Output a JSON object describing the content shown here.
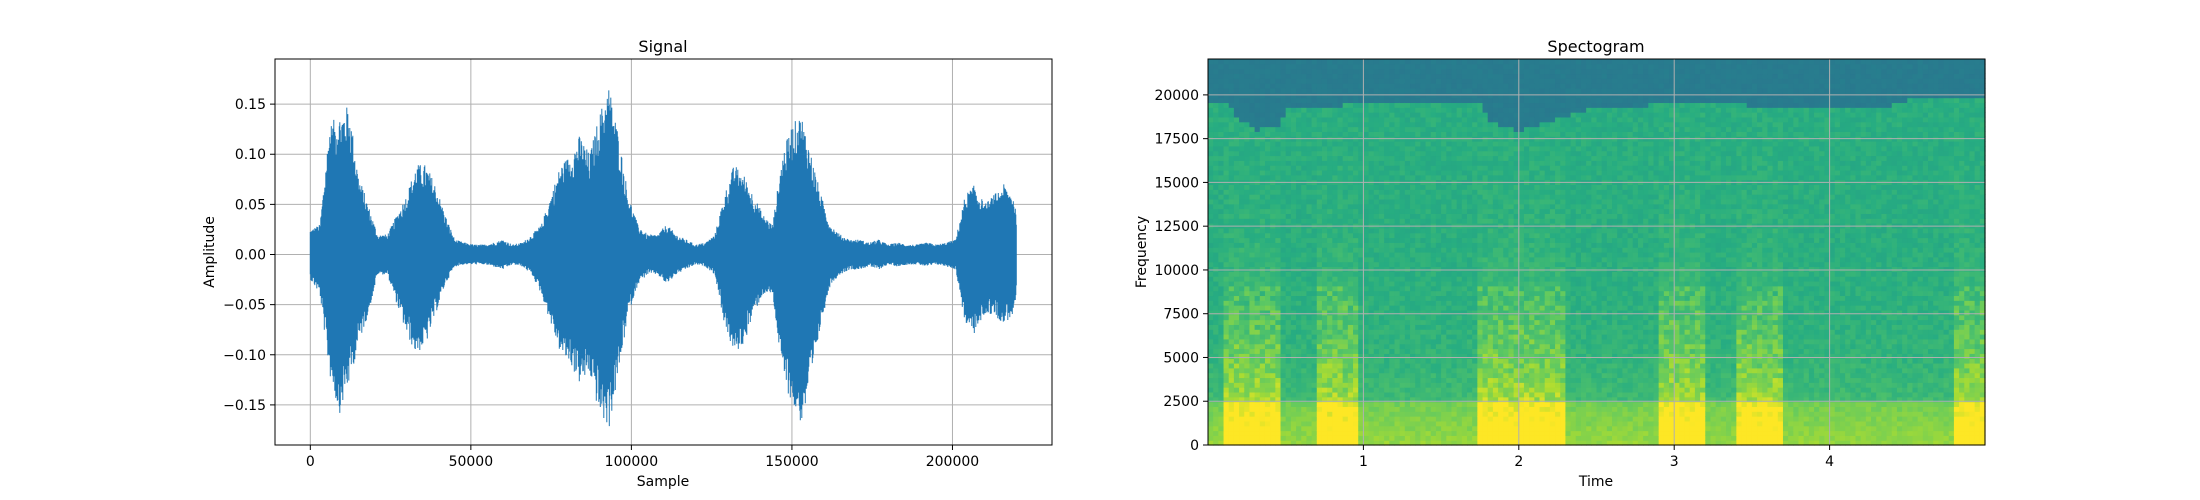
{
  "chart_data": [
    {
      "type": "line",
      "title": "Signal",
      "xlabel": "Sample",
      "ylabel": "Amplitude",
      "xlim": [
        -11000,
        231000
      ],
      "ylim": [
        -0.19,
        0.195
      ],
      "xticks": [
        0,
        50000,
        100000,
        150000,
        200000
      ],
      "xtick_labels": [
        "0",
        "50000",
        "100000",
        "150000",
        "200000"
      ],
      "yticks": [
        -0.15,
        -0.1,
        -0.05,
        0.0,
        0.05,
        0.1,
        0.15
      ],
      "ytick_labels": [
        "−0.15",
        "−0.10",
        "−0.05",
        "0.00",
        "0.05",
        "0.10",
        "0.15"
      ],
      "grid": true,
      "color": "#1f77b4",
      "series": [
        {
          "x": [
            0,
            3000,
            6000,
            9000,
            12000,
            15000,
            18000,
            21000,
            24000,
            27000,
            30000,
            33000,
            36000,
            39000,
            42000,
            45000,
            48000,
            51000,
            54000,
            57000,
            60000,
            63000,
            66000,
            69000,
            72000,
            75000,
            78000,
            81000,
            84000,
            87000,
            90000,
            93000,
            96000,
            99000,
            102000,
            105000,
            108000,
            111000,
            114000,
            117000,
            120000,
            123000,
            126000,
            129000,
            132000,
            135000,
            138000,
            141000,
            144000,
            147000,
            150000,
            153000,
            156000,
            159000,
            162000,
            165000,
            168000,
            171000,
            174000,
            177000,
            180000,
            183000,
            186000,
            189000,
            192000,
            195000,
            198000,
            201000,
            204000,
            207000,
            210000,
            213000,
            216000,
            219000,
            220000
          ],
          "ymax": [
            0.025,
            0.03,
            0.13,
            0.14,
            0.15,
            0.08,
            0.05,
            0.02,
            0.02,
            0.04,
            0.06,
            0.09,
            0.09,
            0.07,
            0.04,
            0.015,
            0.012,
            0.01,
            0.01,
            0.012,
            0.015,
            0.01,
            0.012,
            0.02,
            0.03,
            0.06,
            0.09,
            0.1,
            0.12,
            0.1,
            0.14,
            0.17,
            0.12,
            0.06,
            0.03,
            0.02,
            0.02,
            0.03,
            0.02,
            0.015,
            0.01,
            0.012,
            0.02,
            0.06,
            0.09,
            0.08,
            0.06,
            0.04,
            0.03,
            0.1,
            0.13,
            0.14,
            0.1,
            0.06,
            0.03,
            0.02,
            0.015,
            0.015,
            0.012,
            0.015,
            0.01,
            0.012,
            0.01,
            0.01,
            0.012,
            0.01,
            0.012,
            0.015,
            0.06,
            0.07,
            0.05,
            0.06,
            0.07,
            0.06,
            0.04
          ],
          "ymin": [
            -0.025,
            -0.04,
            -0.12,
            -0.16,
            -0.13,
            -0.09,
            -0.06,
            -0.02,
            -0.02,
            -0.05,
            -0.08,
            -0.1,
            -0.09,
            -0.06,
            -0.03,
            -0.012,
            -0.01,
            -0.01,
            -0.01,
            -0.012,
            -0.015,
            -0.01,
            -0.012,
            -0.02,
            -0.04,
            -0.07,
            -0.1,
            -0.11,
            -0.13,
            -0.12,
            -0.16,
            -0.175,
            -0.12,
            -0.06,
            -0.03,
            -0.02,
            -0.02,
            -0.03,
            -0.02,
            -0.015,
            -0.01,
            -0.012,
            -0.02,
            -0.07,
            -0.1,
            -0.09,
            -0.06,
            -0.04,
            -0.04,
            -0.12,
            -0.15,
            -0.17,
            -0.13,
            -0.07,
            -0.03,
            -0.02,
            -0.015,
            -0.015,
            -0.012,
            -0.015,
            -0.01,
            -0.012,
            -0.01,
            -0.01,
            -0.012,
            -0.01,
            -0.012,
            -0.015,
            -0.07,
            -0.08,
            -0.06,
            -0.06,
            -0.07,
            -0.06,
            -0.04
          ]
        }
      ]
    },
    {
      "type": "heatmap",
      "title": "Spectogram",
      "xlabel": "Time",
      "ylabel": "Frequency",
      "xlim": [
        0,
        5
      ],
      "ylim": [
        0,
        22050
      ],
      "xticks": [
        1,
        2,
        3,
        4
      ],
      "xtick_labels": [
        "1",
        "2",
        "3",
        "4"
      ],
      "yticks": [
        0,
        2500,
        5000,
        7500,
        10000,
        12500,
        15000,
        17500,
        20000
      ],
      "ytick_labels": [
        "0",
        "2500",
        "5000",
        "7500",
        "10000",
        "12500",
        "15000",
        "17500",
        "20000"
      ],
      "grid": true,
      "colormap": "viridis",
      "speech_time_ranges": [
        [
          0.1,
          0.45
        ],
        [
          0.7,
          0.95
        ],
        [
          1.75,
          2.05
        ],
        [
          2.05,
          2.3
        ],
        [
          2.9,
          3.2
        ],
        [
          3.4,
          3.7
        ],
        [
          4.8,
          5.0
        ]
      ],
      "cutoff_time": [
        0.0,
        0.1,
        0.2,
        0.3,
        0.45,
        0.5,
        0.7,
        0.9,
        1.0,
        1.3,
        1.75,
        1.8,
        2.0,
        2.3,
        2.5,
        3.0,
        3.4,
        3.7,
        3.9,
        4.4,
        4.5,
        4.6,
        5.0
      ],
      "cutoff_freq": [
        19700,
        19700,
        18700,
        18000,
        18200,
        19200,
        19200,
        19500,
        19600,
        19700,
        19700,
        18500,
        18000,
        18800,
        19300,
        19500,
        19500,
        19200,
        19300,
        19400,
        19700,
        19800,
        19800
      ]
    }
  ]
}
